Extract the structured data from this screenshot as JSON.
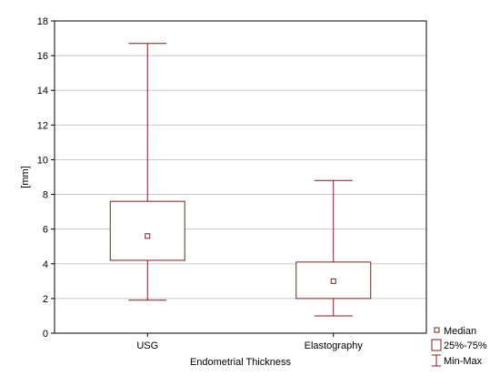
{
  "chart_data": {
    "type": "boxplot",
    "title": "",
    "xlabel": "Endometrial Thickness",
    "ylabel": "[mm]",
    "ylim": [
      0,
      18
    ],
    "yticks": [
      0,
      2,
      4,
      6,
      8,
      10,
      12,
      14,
      16,
      18
    ],
    "grid": true,
    "legend_position": "bottom-right",
    "colors": {
      "box": "#7a1f1f",
      "grid": "#c8c8c8",
      "frame": "#000000"
    },
    "categories": [
      "USG",
      "Elastography"
    ],
    "boxes": [
      {
        "name": "USG",
        "min": 1.9,
        "q1": 4.2,
        "median": 5.6,
        "q3": 7.6,
        "max": 16.7
      },
      {
        "name": "Elastography",
        "min": 1.0,
        "q1": 2.0,
        "median": 3.0,
        "q3": 4.1,
        "max": 8.8
      }
    ],
    "legend": [
      {
        "label": "Median",
        "symbol": "small-square"
      },
      {
        "label": "25%-75%",
        "symbol": "box"
      },
      {
        "label": "Min-Max",
        "symbol": "whisker"
      }
    ]
  }
}
